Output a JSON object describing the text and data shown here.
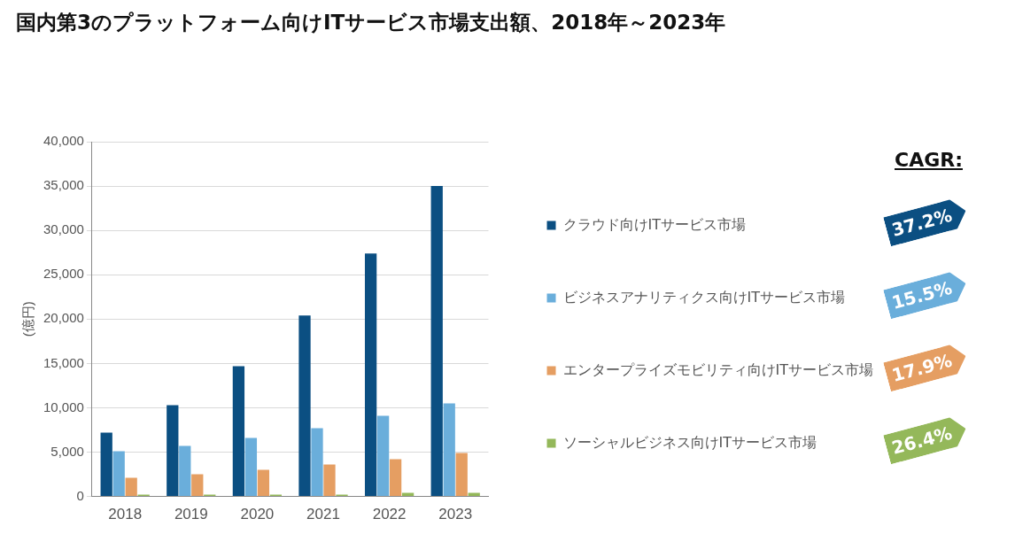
{
  "chart_data": {
    "type": "bar",
    "title": "国内第3のプラットフォーム向けITサービス市場支出額、2018年～2023年",
    "ylabel": "(億円)",
    "categories": [
      "2018",
      "2019",
      "2020",
      "2021",
      "2022",
      "2023"
    ],
    "series": [
      {
        "name": "クラウド向けITサービス市場",
        "color": "#0b4f82",
        "values": [
          7200,
          10300,
          14700,
          20400,
          27400,
          35000
        ]
      },
      {
        "name": "ビジネスアナリティクス向けITサービス市場",
        "color": "#6aaedb",
        "values": [
          5100,
          5700,
          6600,
          7700,
          9100,
          10500
        ]
      },
      {
        "name": "エンタープライズモビリティ向けITサービス市場",
        "color": "#e59e62",
        "values": [
          2100,
          2500,
          3000,
          3600,
          4200,
          4900
        ]
      },
      {
        "name": "ソーシャルビジネス向けITサービス市場",
        "color": "#94b85a",
        "values": [
          200,
          200,
          200,
          200,
          400,
          400
        ]
      }
    ],
    "ylim": [
      0,
      40000
    ],
    "yticks": [
      0,
      {
        "value": 5000,
        "label": "5,000"
      },
      {
        "value": 10000,
        "label": "10,000"
      },
      {
        "value": 15000,
        "label": "15,000"
      },
      {
        "value": 20000,
        "label": "20,000"
      },
      {
        "value": 25000,
        "label": "25,000"
      },
      {
        "value": 30000,
        "label": "30,000"
      },
      {
        "value": 35000,
        "label": "35,000"
      },
      {
        "value": 40000,
        "label": "40,000"
      }
    ],
    "grid": "y",
    "legend": "right",
    "annotations": [
      "CAGR:",
      "37.2%",
      "15.5%",
      "17.9%",
      "26.4%"
    ]
  }
}
